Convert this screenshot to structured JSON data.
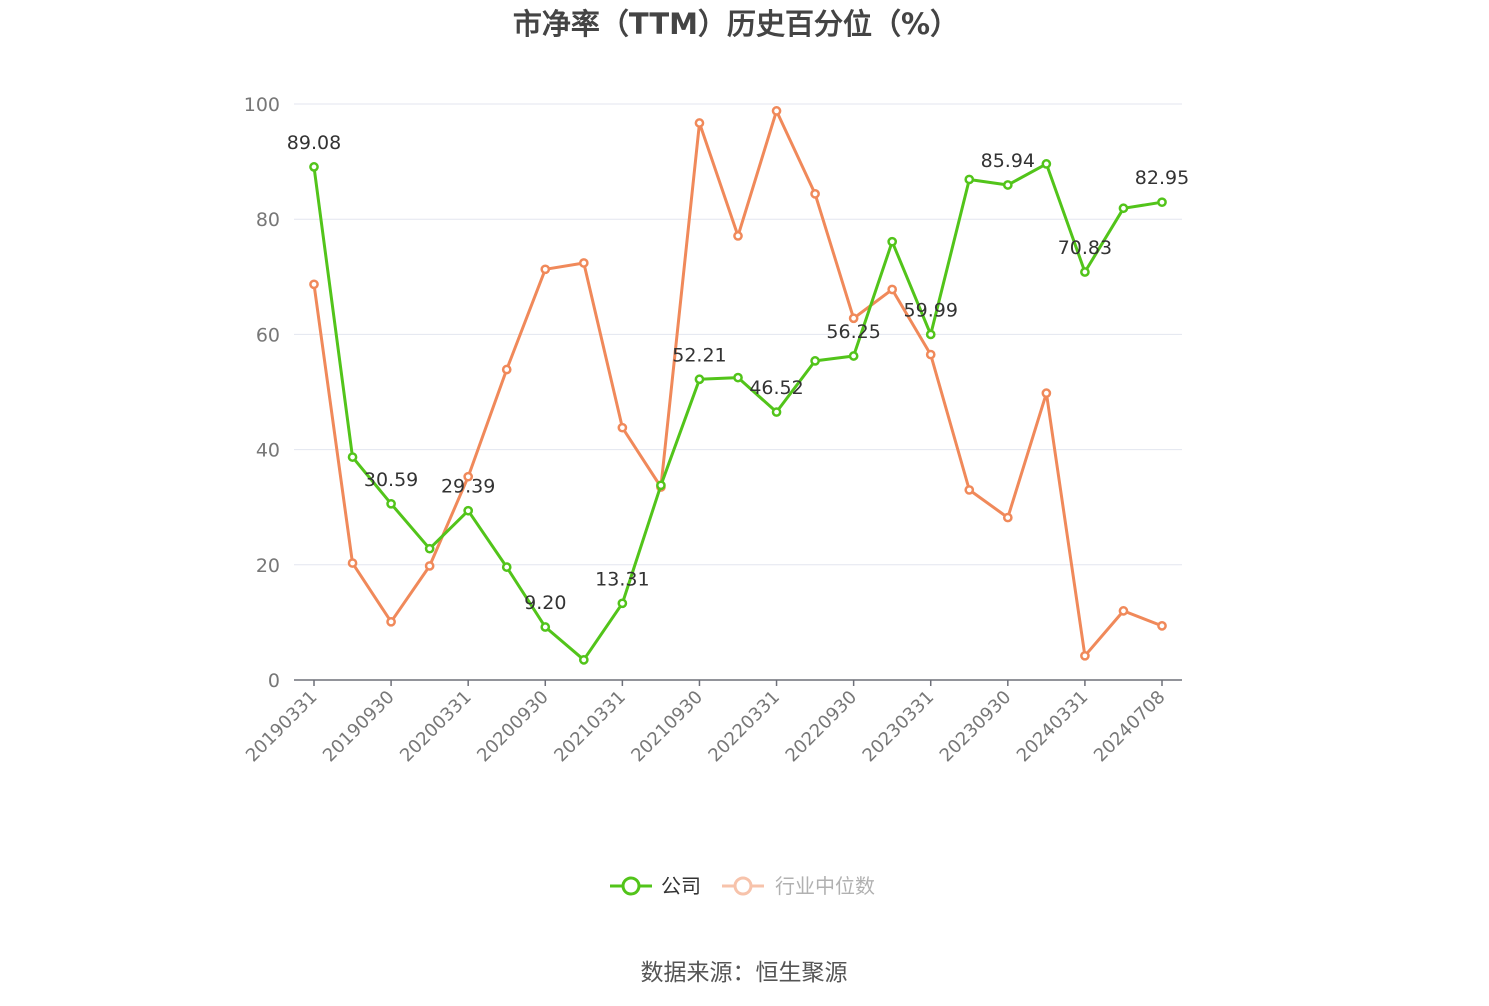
{
  "chart_data": {
    "type": "line",
    "title": "市净率（TTM）历史百分位（%）",
    "source_note": "数据来源：恒生聚源",
    "x": [
      "20190331",
      "20190630",
      "20190930",
      "20191231",
      "20200331",
      "20200630",
      "20200930",
      "20201231",
      "20210331",
      "20210630",
      "20210930",
      "20211231",
      "20220331",
      "20220630",
      "20220930",
      "20221231",
      "20230331",
      "20230630",
      "20230930",
      "20231231",
      "20240331",
      "20240630",
      "20240708"
    ],
    "x_tick_labels": [
      "20190331",
      "20190930",
      "20200331",
      "20200930",
      "20210331",
      "20210930",
      "20220331",
      "20220930",
      "20230331",
      "20230930",
      "20240331",
      "20240708"
    ],
    "ylim": [
      0,
      100
    ],
    "y_ticks": [
      0,
      20,
      40,
      60,
      80,
      100
    ],
    "grid": true,
    "legend_position": "bottom-center",
    "series": [
      {
        "name": "公司",
        "color": "#52c41a",
        "values": [
          89.08,
          38.7,
          30.59,
          22.8,
          29.39,
          19.6,
          9.2,
          3.5,
          13.31,
          33.8,
          52.21,
          52.5,
          46.52,
          55.4,
          56.25,
          76.1,
          59.99,
          86.9,
          85.94,
          89.6,
          70.83,
          81.9,
          82.95
        ],
        "data_labels": [
          {
            "index": 0,
            "text": "89.08"
          },
          {
            "index": 2,
            "text": "30.59"
          },
          {
            "index": 4,
            "text": "29.39"
          },
          {
            "index": 6,
            "text": "9.20"
          },
          {
            "index": 8,
            "text": "13.31"
          },
          {
            "index": 10,
            "text": "52.21"
          },
          {
            "index": 12,
            "text": "46.52"
          },
          {
            "index": 14,
            "text": "56.25"
          },
          {
            "index": 16,
            "text": "59.99"
          },
          {
            "index": 18,
            "text": "85.94"
          },
          {
            "index": 20,
            "text": "70.83"
          },
          {
            "index": 22,
            "text": "82.95"
          }
        ]
      },
      {
        "name": "行业中位数",
        "color": "#f0895a",
        "values": [
          68.7,
          20.3,
          10.1,
          19.8,
          35.3,
          53.9,
          71.3,
          72.4,
          43.8,
          33.5,
          96.7,
          77.1,
          98.8,
          84.4,
          62.8,
          67.8,
          56.5,
          33.0,
          28.2,
          49.8,
          4.2,
          12.0,
          9.4
        ]
      }
    ]
  }
}
